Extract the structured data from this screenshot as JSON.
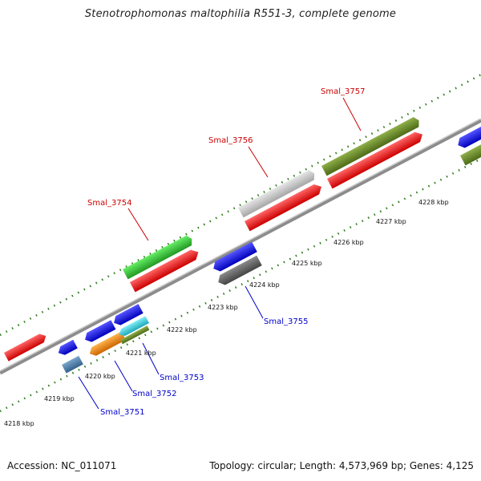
{
  "title": "Stenotrophomonas maltophilia R551-3, complete genome",
  "footer": {
    "accession": "Accession: NC_011071",
    "summary": "Topology: circular; Length: 4,573,969 bp; Genes: 4,125"
  },
  "colors": {
    "background": "#ffffff",
    "backbone": "#8c8c8c",
    "tick": "#2f7d1e",
    "label_forward": "#cc0000",
    "label_reverse": "#0000cc",
    "red": "#ff1a1a",
    "green": "#33cc33",
    "olive": "#6b8e23",
    "light_gray": "#c8c8c8",
    "dark_gray": "#666666",
    "blue": "#1a1aff",
    "steel_blue": "#4a7fb0",
    "orange": "#ff8c00",
    "cyan": "#33d6e6"
  },
  "kbp_labels": [
    "4218 kbp",
    "4219 kbp",
    "4220 kbp",
    "4221 kbp",
    "4222 kbp",
    "4223 kbp",
    "4224 kbp",
    "4225 kbp",
    "4226 kbp",
    "4227 kbp",
    "4228 kbp"
  ],
  "gene_labels": {
    "g3754": "Smal_3754",
    "g3756": "Smal_3756",
    "g3757": "Smal_3757",
    "g3751": "Smal_3751",
    "g3752": "Smal_3752",
    "g3753": "Smal_3753",
    "g3755": "Smal_3755"
  }
}
